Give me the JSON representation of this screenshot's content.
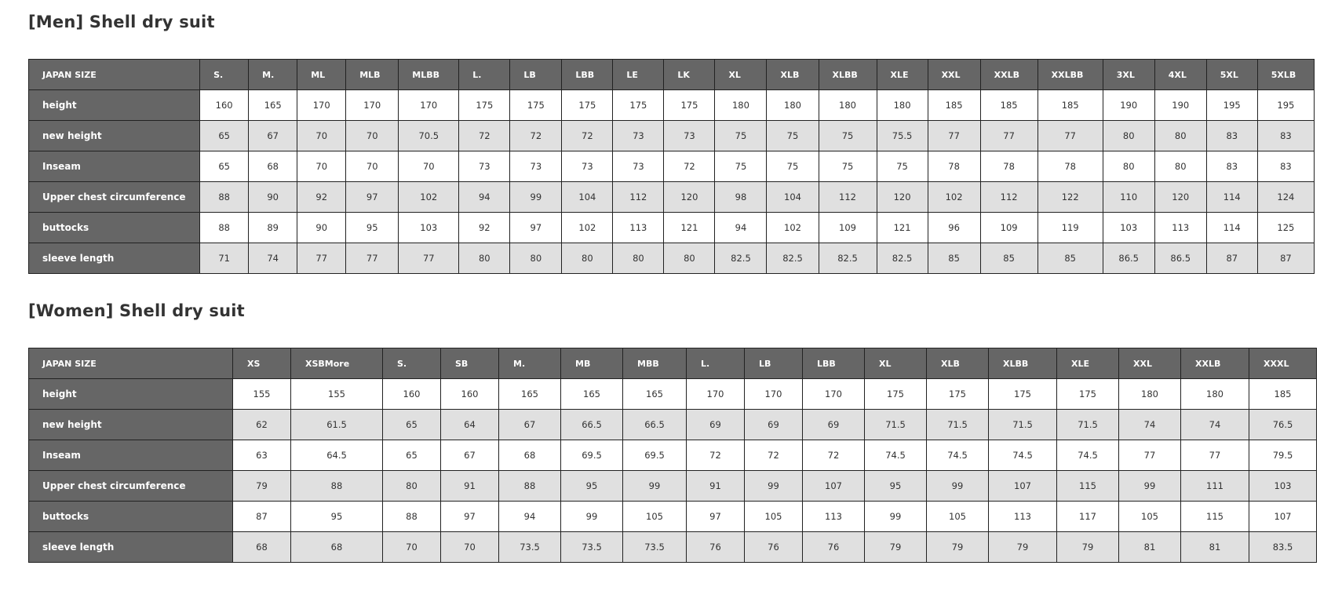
{
  "men": {
    "title": "[Men] Shell dry suit",
    "header_label": "JAPAN SIZE",
    "sizes": [
      "S.",
      "M.",
      "ML",
      "MLB",
      "MLBB",
      "L.",
      "LB",
      "LBB",
      "LE",
      "LK",
      "XL",
      "XLB",
      "XLBB",
      "XLE",
      "XXL",
      "XXLB",
      "XXLBB",
      "3XL",
      "4XL",
      "5XL",
      "5XLB"
    ],
    "rows": [
      {
        "label": "height",
        "values": [
          "160",
          "165",
          "170",
          "170",
          "170",
          "175",
          "175",
          "175",
          "175",
          "175",
          "180",
          "180",
          "180",
          "180",
          "185",
          "185",
          "185",
          "190",
          "190",
          "195",
          "195"
        ]
      },
      {
        "label": "new height",
        "values": [
          "65",
          "67",
          "70",
          "70",
          "70.5",
          "72",
          "72",
          "72",
          "73",
          "73",
          "75",
          "75",
          "75",
          "75.5",
          "77",
          "77",
          "77",
          "80",
          "80",
          "83",
          "83"
        ]
      },
      {
        "label": "Inseam",
        "values": [
          "65",
          "68",
          "70",
          "70",
          "70",
          "73",
          "73",
          "73",
          "73",
          "72",
          "75",
          "75",
          "75",
          "75",
          "78",
          "78",
          "78",
          "80",
          "80",
          "83",
          "83"
        ]
      },
      {
        "label": "Upper chest circumference",
        "values": [
          "88",
          "90",
          "92",
          "97",
          "102",
          "94",
          "99",
          "104",
          "112",
          "120",
          "98",
          "104",
          "112",
          "120",
          "102",
          "112",
          "122",
          "110",
          "120",
          "114",
          "124"
        ]
      },
      {
        "label": "buttocks",
        "values": [
          "88",
          "89",
          "90",
          "95",
          "103",
          "92",
          "97",
          "102",
          "113",
          "121",
          "94",
          "102",
          "109",
          "121",
          "96",
          "109",
          "119",
          "103",
          "113",
          "114",
          "125"
        ]
      },
      {
        "label": "sleeve length",
        "values": [
          "71",
          "74",
          "77",
          "77",
          "77",
          "80",
          "80",
          "80",
          "80",
          "80",
          "82.5",
          "82.5",
          "82.5",
          "82.5",
          "85",
          "85",
          "85",
          "86.5",
          "86.5",
          "87",
          "87"
        ]
      }
    ]
  },
  "women": {
    "title": "[Women] Shell dry suit",
    "header_label": "JAPAN SIZE",
    "sizes": [
      "XS",
      "XSBMore",
      "S.",
      "SB",
      "M.",
      "MB",
      "MBB",
      "L.",
      "LB",
      "LBB",
      "XL",
      "XLB",
      "XLBB",
      "XLE",
      "XXL",
      "XXLB",
      "XXXL"
    ],
    "rows": [
      {
        "label": "height",
        "values": [
          "155",
          "155",
          "160",
          "160",
          "165",
          "165",
          "165",
          "170",
          "170",
          "170",
          "175",
          "175",
          "175",
          "175",
          "180",
          "180",
          "185"
        ]
      },
      {
        "label": "new height",
        "values": [
          "62",
          "61.5",
          "65",
          "64",
          "67",
          "66.5",
          "66.5",
          "69",
          "69",
          "69",
          "71.5",
          "71.5",
          "71.5",
          "71.5",
          "74",
          "74",
          "76.5"
        ]
      },
      {
        "label": "Inseam",
        "values": [
          "63",
          "64.5",
          "65",
          "67",
          "68",
          "69.5",
          "69.5",
          "72",
          "72",
          "72",
          "74.5",
          "74.5",
          "74.5",
          "74.5",
          "77",
          "77",
          "79.5"
        ]
      },
      {
        "label": "Upper chest circumference",
        "values": [
          "79",
          "88",
          "80",
          "91",
          "88",
          "95",
          "99",
          "91",
          "99",
          "107",
          "95",
          "99",
          "107",
          "115",
          "99",
          "111",
          "103"
        ]
      },
      {
        "label": "buttocks",
        "values": [
          "87",
          "95",
          "88",
          "97",
          "94",
          "99",
          "105",
          "97",
          "105",
          "113",
          "99",
          "105",
          "113",
          "117",
          "105",
          "115",
          "107"
        ]
      },
      {
        "label": "sleeve length",
        "values": [
          "68",
          "68",
          "70",
          "70",
          "73.5",
          "73.5",
          "73.5",
          "76",
          "76",
          "76",
          "79",
          "79",
          "79",
          "79",
          "81",
          "81",
          "83.5"
        ]
      }
    ]
  }
}
